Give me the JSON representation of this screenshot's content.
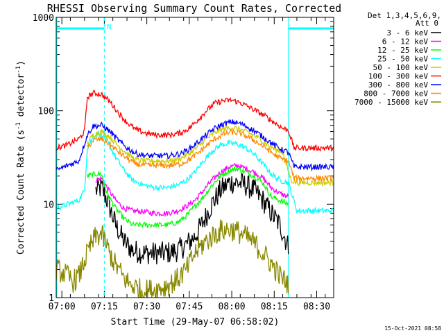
{
  "chart_data": {
    "type": "line",
    "title": "RHESSI Observing Summary Count Rates, Corrected",
    "xlabel": "Start Time (29-May-07 06:58:02)",
    "ylabel": "Corrected Count Rate (s",
    "ylabel_sup1": "-1",
    "ylabel_mid": " detector",
    "ylabel_sup2": "-1",
    "ylabel_end": ")",
    "footer": "15-Oct-2021 08:58",
    "legend_header": [
      "Det 1,3,4,5,6,9,",
      "Att 0"
    ],
    "legend_placement": "right",
    "yscale": "log",
    "xlim_min": [
      0,
      98
    ],
    "ylim": [
      1,
      1000
    ],
    "x_ticks_min": [
      2,
      17,
      32,
      47,
      62,
      77,
      92
    ],
    "x_tick_labels": [
      "07:00",
      "07:15",
      "07:30",
      "07:45",
      "08:00",
      "08:15",
      "08:30"
    ],
    "y_ticks": [
      1,
      10,
      100,
      1000
    ],
    "y_tick_labels": [
      "1",
      "10",
      "100",
      "1000"
    ],
    "night_marker": "N",
    "markers_min": [
      [
        0,
        17
      ],
      [
        82,
        98
      ]
    ],
    "marker_color": "#00ffff",
    "series": [
      {
        "name": "3 - 6 keV",
        "color": "#000000",
        "points": [
          [
            14,
            14
          ],
          [
            16,
            15
          ],
          [
            18,
            11
          ],
          [
            21,
            6
          ],
          [
            24,
            4
          ],
          [
            27,
            3.2
          ],
          [
            31,
            3
          ],
          [
            35,
            3
          ],
          [
            39,
            3
          ],
          [
            43,
            3.2
          ],
          [
            46,
            3.7
          ],
          [
            49,
            4.5
          ],
          [
            52,
            6.5
          ],
          [
            55,
            10
          ],
          [
            58,
            14
          ],
          [
            61,
            17
          ],
          [
            64,
            17
          ],
          [
            67,
            16
          ],
          [
            70,
            14
          ],
          [
            73,
            11
          ],
          [
            76,
            8
          ],
          [
            79,
            6
          ],
          [
            82,
            3.5
          ]
        ],
        "flat_start": 12
      },
      {
        "name": "6 - 12 keV",
        "color": "#ff00ff",
        "points": [
          [
            14,
            18
          ],
          [
            16,
            19
          ],
          [
            18,
            15
          ],
          [
            21,
            11
          ],
          [
            24,
            9
          ],
          [
            27,
            8.5
          ],
          [
            31,
            8.3
          ],
          [
            35,
            8
          ],
          [
            39,
            8
          ],
          [
            43,
            8.5
          ],
          [
            46,
            9.5
          ],
          [
            49,
            11
          ],
          [
            52,
            14
          ],
          [
            55,
            18
          ],
          [
            58,
            22
          ],
          [
            61,
            25
          ],
          [
            64,
            26
          ],
          [
            67,
            24
          ],
          [
            70,
            22
          ],
          [
            73,
            19
          ],
          [
            76,
            15
          ],
          [
            79,
            13
          ],
          [
            82,
            12
          ]
        ],
        "flat_start": 12
      },
      {
        "name": "12 - 25 keV",
        "color": "#00ff00",
        "points": [
          [
            11,
            20
          ],
          [
            14,
            21
          ],
          [
            16,
            21
          ],
          [
            18,
            13
          ],
          [
            21,
            9
          ],
          [
            24,
            7
          ],
          [
            27,
            6
          ],
          [
            31,
            6
          ],
          [
            35,
            6
          ],
          [
            39,
            6
          ],
          [
            43,
            6.4
          ],
          [
            46,
            7.5
          ],
          [
            49,
            9.5
          ],
          [
            52,
            12
          ],
          [
            55,
            16
          ],
          [
            58,
            20
          ],
          [
            61,
            23
          ],
          [
            64,
            24
          ],
          [
            67,
            22
          ],
          [
            70,
            20
          ],
          [
            73,
            17
          ],
          [
            76,
            12
          ],
          [
            79,
            11
          ],
          [
            82,
            10
          ]
        ],
        "flat_start": 11
      },
      {
        "name": "25 - 50 keV",
        "color": "#00ffff",
        "points": [
          [
            0,
            9
          ],
          [
            4,
            10
          ],
          [
            8,
            11
          ],
          [
            10,
            14
          ],
          [
            11,
            40
          ],
          [
            13,
            52
          ],
          [
            15,
            58
          ],
          [
            18,
            47
          ],
          [
            21,
            32
          ],
          [
            24,
            23
          ],
          [
            27,
            18
          ],
          [
            31,
            16
          ],
          [
            35,
            15
          ],
          [
            39,
            15
          ],
          [
            43,
            16
          ],
          [
            46,
            18
          ],
          [
            49,
            22
          ],
          [
            52,
            29
          ],
          [
            55,
            37
          ],
          [
            58,
            43
          ],
          [
            61,
            45
          ],
          [
            64,
            44
          ],
          [
            67,
            40
          ],
          [
            70,
            34
          ],
          [
            73,
            27
          ],
          [
            76,
            21
          ],
          [
            79,
            18
          ],
          [
            82,
            17
          ],
          [
            85,
            8.5
          ],
          [
            98,
            8.5
          ]
        ]
      },
      {
        "name": "50 - 100 keV",
        "color": "#cccc00",
        "points": [
          [
            11,
            45
          ],
          [
            13,
            55
          ],
          [
            16,
            60
          ],
          [
            19,
            52
          ],
          [
            22,
            42
          ],
          [
            25,
            35
          ],
          [
            28,
            30
          ],
          [
            32,
            29
          ],
          [
            36,
            29
          ],
          [
            40,
            29
          ],
          [
            44,
            31
          ],
          [
            47,
            35
          ],
          [
            50,
            41
          ],
          [
            53,
            50
          ],
          [
            56,
            58
          ],
          [
            59,
            64
          ],
          [
            62,
            66
          ],
          [
            65,
            63
          ],
          [
            68,
            58
          ],
          [
            71,
            52
          ],
          [
            74,
            45
          ],
          [
            77,
            39
          ],
          [
            80,
            36
          ],
          [
            83,
            18
          ],
          [
            85,
            17
          ],
          [
            98,
            17
          ]
        ]
      },
      {
        "name": "100 - 300 keV",
        "color": "#ff0000",
        "points": [
          [
            0,
            40
          ],
          [
            4,
            43
          ],
          [
            8,
            50
          ],
          [
            10,
            60
          ],
          [
            11,
            140
          ],
          [
            13,
            155
          ],
          [
            16,
            150
          ],
          [
            19,
            125
          ],
          [
            22,
            95
          ],
          [
            25,
            75
          ],
          [
            28,
            63
          ],
          [
            32,
            57
          ],
          [
            36,
            55
          ],
          [
            40,
            55
          ],
          [
            44,
            58
          ],
          [
            47,
            65
          ],
          [
            50,
            80
          ],
          [
            53,
            100
          ],
          [
            56,
            120
          ],
          [
            59,
            128
          ],
          [
            62,
            130
          ],
          [
            65,
            122
          ],
          [
            68,
            110
          ],
          [
            71,
            98
          ],
          [
            74,
            87
          ],
          [
            77,
            75
          ],
          [
            80,
            65
          ],
          [
            82,
            62
          ],
          [
            84,
            40
          ],
          [
            98,
            40
          ]
        ]
      },
      {
        "name": "300 - 800 keV",
        "color": "#0000ff",
        "points": [
          [
            0,
            23
          ],
          [
            4,
            26
          ],
          [
            8,
            29
          ],
          [
            11,
            55
          ],
          [
            13,
            68
          ],
          [
            16,
            70
          ],
          [
            19,
            60
          ],
          [
            22,
            48
          ],
          [
            25,
            40
          ],
          [
            28,
            35
          ],
          [
            32,
            33
          ],
          [
            36,
            33
          ],
          [
            40,
            33
          ],
          [
            44,
            35
          ],
          [
            47,
            39
          ],
          [
            50,
            46
          ],
          [
            53,
            55
          ],
          [
            56,
            65
          ],
          [
            59,
            72
          ],
          [
            62,
            76
          ],
          [
            65,
            73
          ],
          [
            68,
            66
          ],
          [
            71,
            58
          ],
          [
            74,
            50
          ],
          [
            77,
            43
          ],
          [
            80,
            38
          ],
          [
            82,
            36
          ],
          [
            84,
            25
          ],
          [
            98,
            25
          ]
        ]
      },
      {
        "name": "800 - 7000 keV",
        "color": "#ff8800",
        "points": [
          [
            11,
            40
          ],
          [
            13,
            48
          ],
          [
            16,
            50
          ],
          [
            19,
            44
          ],
          [
            22,
            36
          ],
          [
            25,
            31
          ],
          [
            28,
            27
          ],
          [
            32,
            26
          ],
          [
            36,
            26
          ],
          [
            40,
            26
          ],
          [
            44,
            27
          ],
          [
            47,
            30
          ],
          [
            50,
            35
          ],
          [
            53,
            42
          ],
          [
            56,
            50
          ],
          [
            59,
            56
          ],
          [
            62,
            59
          ],
          [
            65,
            57
          ],
          [
            68,
            52
          ],
          [
            71,
            46
          ],
          [
            74,
            40
          ],
          [
            77,
            34
          ],
          [
            80,
            30
          ],
          [
            82,
            29
          ],
          [
            84,
            19
          ],
          [
            98,
            19
          ]
        ]
      },
      {
        "name": "7000 - 15000 keV",
        "color": "#888800",
        "points": [
          [
            0,
            2
          ],
          [
            3,
            1.8
          ],
          [
            6,
            1.5
          ],
          [
            8,
            1.7
          ],
          [
            10,
            2.5
          ],
          [
            12,
            3.5
          ],
          [
            14,
            4.5
          ],
          [
            16,
            4.8
          ],
          [
            18,
            3.5
          ],
          [
            20,
            2.5
          ],
          [
            22,
            2
          ],
          [
            24,
            1.6
          ],
          [
            26,
            1.4
          ],
          [
            30,
            1.2
          ],
          [
            34,
            1.2
          ],
          [
            38,
            1.3
          ],
          [
            42,
            1.5
          ],
          [
            46,
            2
          ],
          [
            49,
            3
          ],
          [
            52,
            3.8
          ],
          [
            55,
            4.5
          ],
          [
            58,
            5.2
          ],
          [
            61,
            5.4
          ],
          [
            64,
            5.1
          ],
          [
            67,
            4.5
          ],
          [
            70,
            3.8
          ],
          [
            73,
            3
          ],
          [
            76,
            2.3
          ],
          [
            79,
            1.7
          ],
          [
            82,
            1.4
          ]
        ]
      }
    ]
  }
}
